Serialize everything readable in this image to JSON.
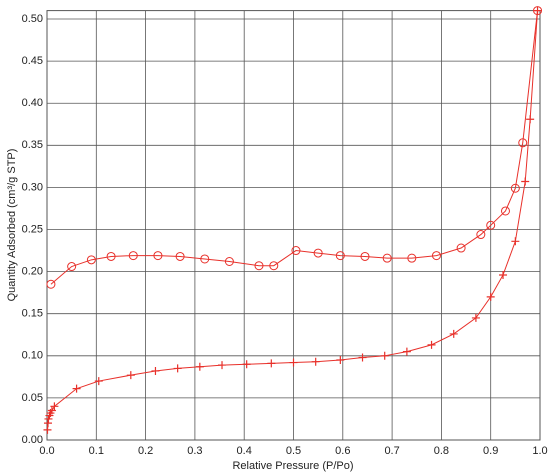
{
  "chart_data": {
    "type": "line",
    "xlabel": "Relative Pressure (P/Po)",
    "ylabel": "Quantity Adsorbed (cm³/g STP)",
    "xlim": [
      0,
      1.0
    ],
    "xticks": [
      {
        "value": 0,
        "label": "0.0"
      },
      0.1,
      0.2,
      0.3,
      0.4,
      0.5,
      0.6,
      0.7,
      0.8,
      0.9,
      {
        "value": 1,
        "label": "1.0"
      }
    ],
    "ylim": [
      0,
      0.51
    ],
    "yticks": [
      {
        "value": 0,
        "label": "0.00"
      },
      0.05,
      {
        "value": 0.1,
        "label": "0.10"
      },
      0.15,
      {
        "value": 0.2,
        "label": "0.20"
      },
      0.25,
      {
        "value": 0.3,
        "label": "0.30"
      },
      0.35,
      {
        "value": 0.4,
        "label": "0.40"
      },
      0.45,
      {
        "value": 0.5,
        "label": "0.50"
      }
    ],
    "grid": true,
    "series": [
      {
        "color": "#e8302a",
        "marker": "plus",
        "x": [
          0.001,
          0.002,
          0.003,
          0.005,
          0.007,
          0.01,
          0.015,
          0.06,
          0.105,
          0.17,
          0.22,
          0.265,
          0.31,
          0.355,
          0.405,
          0.455,
          0.5,
          0.545,
          0.595,
          0.64,
          0.685,
          0.73,
          0.78,
          0.825,
          0.87,
          0.9,
          0.925,
          0.95,
          0.97,
          0.98,
          0.995
        ],
        "values": [
          0.012,
          0.02,
          0.025,
          0.029,
          0.032,
          0.035,
          0.04,
          0.061,
          0.07,
          0.077,
          0.082,
          0.085,
          0.087,
          0.089,
          0.09,
          0.091,
          0.092,
          0.093,
          0.095,
          0.098,
          0.1,
          0.105,
          0.113,
          0.126,
          0.145,
          0.17,
          0.196,
          0.236,
          0.307,
          0.381,
          0.51
        ]
      },
      {
        "color": "#e8302a",
        "marker": "circle",
        "x": [
          0.995,
          0.965,
          0.95,
          0.93,
          0.9,
          0.88,
          0.84,
          0.79,
          0.74,
          0.69,
          0.645,
          0.595,
          0.55,
          0.505,
          0.46,
          0.43,
          0.37,
          0.32,
          0.27,
          0.225,
          0.175,
          0.13,
          0.09,
          0.05,
          0.008
        ],
        "values": [
          0.51,
          0.353,
          0.299,
          0.272,
          0.255,
          0.244,
          0.228,
          0.219,
          0.216,
          0.216,
          0.218,
          0.219,
          0.222,
          0.225,
          0.207,
          0.207,
          0.212,
          0.215,
          0.218,
          0.219,
          0.219,
          0.218,
          0.214,
          0.206,
          0.185
        ]
      }
    ]
  }
}
